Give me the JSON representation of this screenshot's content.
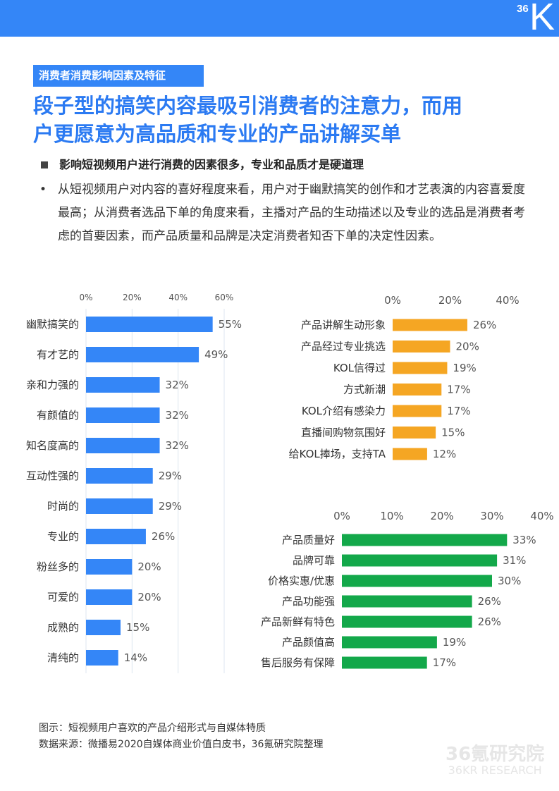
{
  "header": {
    "logo": "36Kr",
    "logo_num": "36",
    "logo_letter": "K"
  },
  "section_tag": "消费者消费影响因素及特征",
  "headline": [
    "段子型的搞笑内容最吸引消费者的注意力，而用",
    "户更愿意为高品质和专业的产品讲解买单"
  ],
  "subheading": "影响短视频用户进行消费的因素很多，专业和品质才是硬道理",
  "bullet": "•",
  "body": "从短视频用户对内容的喜好程度来看，用户对于幽默搞笑的创作和才艺表演的内容喜爱度最高；从消费者选品下单的角度来看，主播对产品的生动描述以及专业的选品是消费者考虑的首要因素，而产品质量和品牌是决定消费者知否下单的决定性因素。",
  "caption": [
    "图示：短视频用户喜欢的产品介绍形式与自媒体特质",
    "数据来源：微播易2020自媒体商业价值白皮书，36氪研究院整理"
  ],
  "watermark": [
    "36氪研究院",
    "36KR RESEARCH"
  ],
  "chart_data": [
    {
      "type": "bar",
      "orientation": "horizontal",
      "color": "#3486f7",
      "xlim": [
        0,
        60
      ],
      "ticks": [
        "0%",
        "20%",
        "40%",
        "60%"
      ],
      "grid": true,
      "categories": [
        "幽默搞笑的",
        "有才艺的",
        "亲和力强的",
        "有颜值的",
        "知名度高的",
        "互动性强的",
        "时尚的",
        "专业的",
        "粉丝多的",
        "可爱的",
        "成熟的",
        "清纯的"
      ],
      "values": [
        55,
        49,
        32,
        32,
        32,
        29,
        29,
        26,
        20,
        20,
        15,
        14
      ]
    },
    {
      "type": "bar",
      "orientation": "horizontal",
      "color": "#f5a623",
      "xlim": [
        0,
        40
      ],
      "ticks": [
        "0%",
        "20%",
        "40%"
      ],
      "grid": false,
      "categories": [
        "产品讲解生动形象",
        "产品经过专业挑选",
        "KOL信得过",
        "方式新潮",
        "KOL介绍有感染力",
        "直播间购物氛围好",
        "给KOL捧场，支持TA"
      ],
      "values": [
        26,
        20,
        19,
        17,
        17,
        15,
        12
      ]
    },
    {
      "type": "bar",
      "orientation": "horizontal",
      "color": "#13a84a",
      "xlim": [
        0,
        40
      ],
      "ticks": [
        "0%",
        "10%",
        "20%",
        "30%",
        "40%"
      ],
      "grid": false,
      "categories": [
        "产品质量好",
        "品牌可靠",
        "价格实惠/优惠",
        "产品功能强",
        "产品新鲜有特色",
        "产品颜值高",
        "售后服务有保障"
      ],
      "values": [
        33,
        31,
        30,
        26,
        26,
        19,
        17
      ]
    }
  ]
}
